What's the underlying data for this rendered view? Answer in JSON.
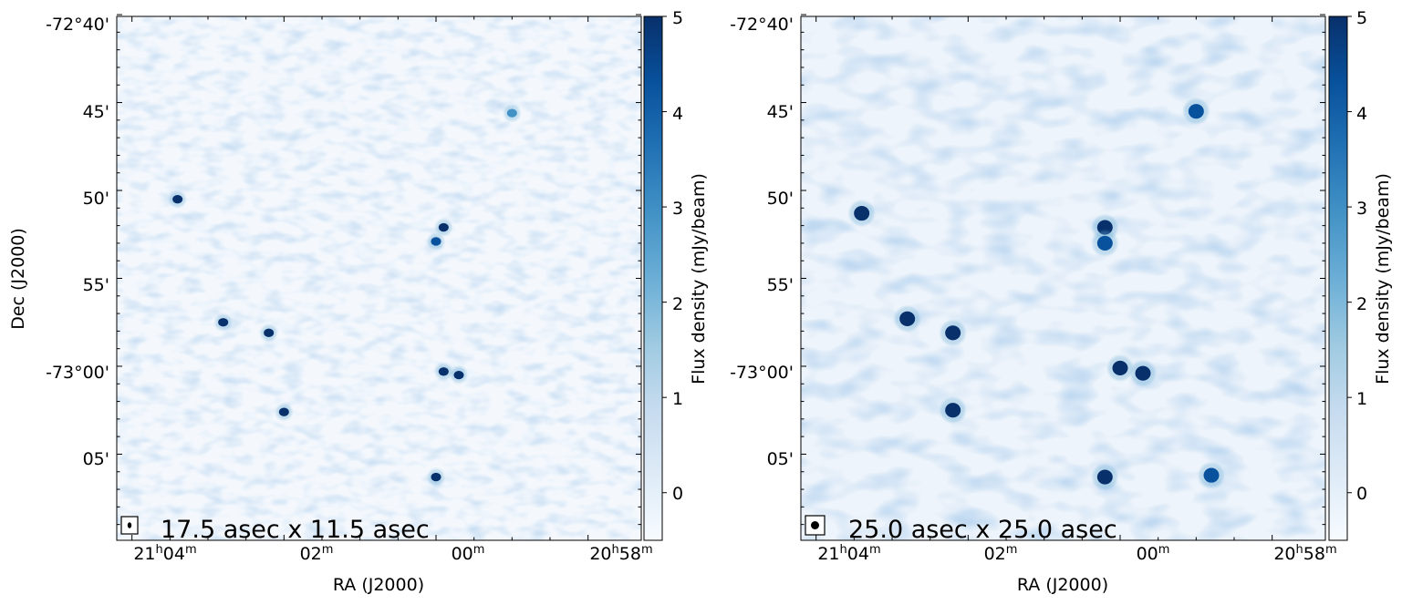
{
  "figure": {
    "colormap": [
      "#f7fbff",
      "#deebf7",
      "#c6dbef",
      "#9ecae1",
      "#6baed6",
      "#4292c6",
      "#2171b5",
      "#08519c",
      "#08306b"
    ],
    "accent": "#08306b"
  },
  "chart_data": [
    {
      "type": "heatmap",
      "xlabel": "RA (J2000)",
      "ylabel": "Dec (J2000)",
      "xticks": [
        "21h04m",
        "02m",
        "00m",
        "20h58m"
      ],
      "yticks": [
        "-72°40'",
        "45'",
        "50'",
        "55'",
        "-73°00'",
        "05'"
      ],
      "colorbar": {
        "label": "Flux density (mJy/beam)",
        "range": [
          -0.5,
          5
        ],
        "ticks": [
          "0",
          "1",
          "2",
          "3",
          "4",
          "5"
        ]
      },
      "beam_label": "17.5 asec x 11.5 asec",
      "sources": [
        {
          "ra_min": 63.4,
          "dec_arcmin": -50.5,
          "flux": 5
        },
        {
          "ra_min": 62.8,
          "dec_arcmin": -57.5,
          "flux": 5
        },
        {
          "ra_min": 62.2,
          "dec_arcmin": -58.1,
          "flux": 5
        },
        {
          "ra_min": 62.0,
          "dec_arcmin": -62.6,
          "flux": 5
        },
        {
          "ra_min": 59.9,
          "dec_arcmin": -52.1,
          "flux": 5
        },
        {
          "ra_min": 60.0,
          "dec_arcmin": -52.9,
          "flux": 4
        },
        {
          "ra_min": 59.9,
          "dec_arcmin": -60.3,
          "flux": 5
        },
        {
          "ra_min": 59.7,
          "dec_arcmin": -60.5,
          "flux": 5
        },
        {
          "ra_min": 60.0,
          "dec_arcmin": -66.3,
          "flux": 5
        },
        {
          "ra_min": 59.0,
          "dec_arcmin": -45.6,
          "flux": 3
        }
      ]
    },
    {
      "type": "heatmap",
      "xlabel": "RA (J2000)",
      "ylabel": "",
      "xticks": [
        "21h04m",
        "02m",
        "00m",
        "20h58m"
      ],
      "yticks": [
        "-72°40'",
        "45'",
        "50'",
        "55'",
        "-73°00'",
        "05'"
      ],
      "colorbar": {
        "label": "Flux density (mJy/beam)",
        "range": [
          -0.5,
          5
        ],
        "ticks": [
          "0",
          "1",
          "2",
          "3",
          "4",
          "5"
        ]
      },
      "beam_label": "25.0 asec x 25.0 asec",
      "sources": [
        {
          "ra_min": 63.4,
          "dec_arcmin": -51.3,
          "flux": 5
        },
        {
          "ra_min": 62.8,
          "dec_arcmin": -57.3,
          "flux": 5
        },
        {
          "ra_min": 62.2,
          "dec_arcmin": -58.1,
          "flux": 5
        },
        {
          "ra_min": 62.2,
          "dec_arcmin": -62.5,
          "flux": 5
        },
        {
          "ra_min": 60.2,
          "dec_arcmin": -52.1,
          "flux": 5
        },
        {
          "ra_min": 60.2,
          "dec_arcmin": -53.0,
          "flux": 4
        },
        {
          "ra_min": 60.0,
          "dec_arcmin": -60.1,
          "flux": 5
        },
        {
          "ra_min": 59.7,
          "dec_arcmin": -60.4,
          "flux": 5
        },
        {
          "ra_min": 60.2,
          "dec_arcmin": -66.3,
          "flux": 5
        },
        {
          "ra_min": 58.8,
          "dec_arcmin": -66.2,
          "flux": 4
        },
        {
          "ra_min": 59.0,
          "dec_arcmin": -45.5,
          "flux": 4
        }
      ]
    }
  ]
}
